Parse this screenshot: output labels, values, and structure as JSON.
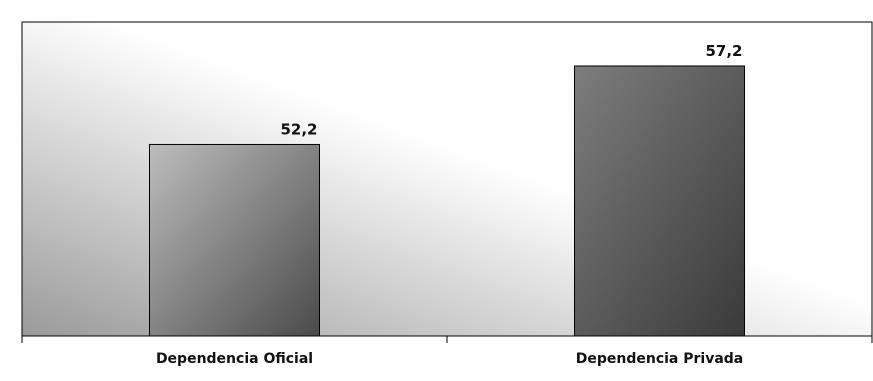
{
  "chart_data": {
    "type": "bar",
    "categories": [
      "Dependencia Oficial",
      "Dependencia Privada"
    ],
    "values": [
      52.2,
      57.2
    ],
    "value_labels": [
      "52,2",
      "57,2"
    ],
    "title": "",
    "xlabel": "",
    "ylabel": "",
    "ylim": [
      40,
      60
    ],
    "grid": false,
    "legend": "none",
    "colors": {
      "bar_light": "#bdbdbd",
      "bar_dark": "#4a4a4a",
      "bar2_light": "#7d7d7d",
      "bar2_dark": "#3a3a3a",
      "background_light": "#ffffff",
      "background_dark": "#9a9a9a",
      "border": "#000000"
    }
  }
}
